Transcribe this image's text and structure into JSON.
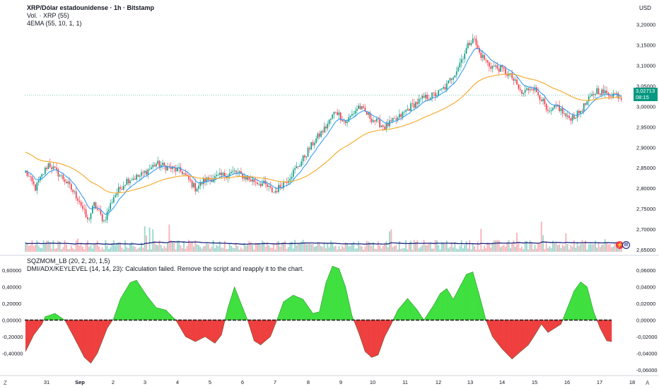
{
  "header": {
    "symbol_title": "XRP/Dólar estadounidense · 1h · Bitstamp",
    "volume_label": "Vol. · XRP (55)",
    "ema_label": "4EMA (55, 10, 1, 1)",
    "currency": "USD"
  },
  "price_badge": {
    "price": "3,02713",
    "countdown": "08:15"
  },
  "lower_pane": {
    "indicator_label": "SQZMOM_LB (20, 2, 20, 1,5)",
    "error_label": "DMI/ADX/KEYLEVEL (14, 14, 23): Calculation failed. Remove the script and reapply it to the chart."
  },
  "bottom_corner": {
    "left": "Z",
    "right": "A"
  },
  "colors": {
    "up": "#089981",
    "down": "#f23645",
    "ema_fast": "#2196f3",
    "ema_slow": "#f5a623",
    "vol_ma": "#1a237e",
    "mom_pos": "#3fe03f",
    "mom_neg": "#ef3f3f"
  },
  "chart_data": [
    {
      "type": "candlestick",
      "title": "XRP/Dólar estadounidense · 1h · Bitstamp",
      "y_axis_side": "right",
      "ylim": [
        2.645,
        3.225
      ],
      "y_ticks": [
        "3,20000",
        "3,15000",
        "3,10000",
        "3,05000",
        "3,00000",
        "2,95000",
        "2,90000",
        "2,85000",
        "2,80000",
        "2,75000",
        "2,70000",
        "2,65000"
      ],
      "x_ticks": [
        "31",
        "Sep",
        "2",
        "3",
        "4",
        "5",
        "6",
        "7",
        "8",
        "9",
        "10",
        "11",
        "12",
        "13",
        "14",
        "15",
        "16",
        "17",
        "18"
      ],
      "close_anchors": [
        [
          0,
          2.84
        ],
        [
          6,
          2.8
        ],
        [
          14,
          2.86
        ],
        [
          24,
          2.82
        ],
        [
          33,
          2.77
        ],
        [
          38,
          2.72
        ],
        [
          42,
          2.76
        ],
        [
          48,
          2.72
        ],
        [
          54,
          2.78
        ],
        [
          62,
          2.82
        ],
        [
          70,
          2.83
        ],
        [
          80,
          2.86
        ],
        [
          88,
          2.85
        ],
        [
          96,
          2.84
        ],
        [
          104,
          2.8
        ],
        [
          110,
          2.82
        ],
        [
          120,
          2.83
        ],
        [
          128,
          2.84
        ],
        [
          138,
          2.82
        ],
        [
          146,
          2.81
        ],
        [
          152,
          2.79
        ],
        [
          160,
          2.82
        ],
        [
          168,
          2.86
        ],
        [
          176,
          2.91
        ],
        [
          184,
          2.95
        ],
        [
          190,
          2.99
        ],
        [
          196,
          2.96
        ],
        [
          204,
          3.0
        ],
        [
          212,
          2.97
        ],
        [
          220,
          2.95
        ],
        [
          228,
          2.97
        ],
        [
          236,
          3.0
        ],
        [
          244,
          3.02
        ],
        [
          252,
          3.03
        ],
        [
          258,
          3.05
        ],
        [
          264,
          3.09
        ],
        [
          270,
          3.14
        ],
        [
          274,
          3.17
        ],
        [
          278,
          3.13
        ],
        [
          284,
          3.1
        ],
        [
          292,
          3.09
        ],
        [
          298,
          3.07
        ],
        [
          304,
          3.03
        ],
        [
          310,
          3.05
        ],
        [
          316,
          3.02
        ],
        [
          320,
          2.98
        ],
        [
          326,
          3.0
        ],
        [
          332,
          2.97
        ],
        [
          338,
          2.98
        ],
        [
          344,
          3.01
        ],
        [
          350,
          3.04
        ],
        [
          356,
          3.03
        ],
        [
          362,
          3.03
        ],
        [
          365,
          3.02
        ]
      ],
      "series": [
        {
          "name": "4EMA fast",
          "role": "ema_fast"
        },
        {
          "name": "4EMA slow",
          "role": "ema_slow"
        }
      ],
      "last_price": 3.02713
    },
    {
      "type": "bar",
      "title": "Vol. · XRP (55)",
      "overlay": "volume moving average line"
    },
    {
      "type": "area",
      "title": "SQZMOM_LB (20, 2, 20, 1,5)",
      "ylim": [
        -0.066,
        0.072
      ],
      "left_y_ticks": [
        "0,60000",
        "0,40000",
        "0,20000",
        "0,00000",
        "-0,20000",
        "-0,40000"
      ],
      "right_y_ticks": [
        "0,06000",
        "0,04000",
        "0,02000",
        "0,00000",
        "-0,02000",
        "-0,04000",
        "-0,06000"
      ],
      "momentum_anchors": [
        [
          0,
          -0.038
        ],
        [
          5,
          -0.018
        ],
        [
          10,
          -0.005
        ],
        [
          12,
          0.004
        ],
        [
          18,
          0.008
        ],
        [
          24,
          0.0
        ],
        [
          30,
          -0.022
        ],
        [
          36,
          -0.045
        ],
        [
          40,
          -0.052
        ],
        [
          44,
          -0.04
        ],
        [
          50,
          -0.01
        ],
        [
          54,
          0.002
        ],
        [
          58,
          0.025
        ],
        [
          64,
          0.045
        ],
        [
          68,
          0.048
        ],
        [
          74,
          0.03
        ],
        [
          80,
          0.015
        ],
        [
          86,
          0.012
        ],
        [
          92,
          0.0
        ],
        [
          98,
          -0.02
        ],
        [
          104,
          -0.026
        ],
        [
          110,
          -0.02
        ],
        [
          116,
          -0.028
        ],
        [
          120,
          -0.018
        ],
        [
          124,
          0.015
        ],
        [
          128,
          0.04
        ],
        [
          132,
          0.02
        ],
        [
          136,
          0.0
        ],
        [
          140,
          -0.025
        ],
        [
          144,
          -0.03
        ],
        [
          150,
          -0.02
        ],
        [
          154,
          0.0
        ],
        [
          158,
          0.022
        ],
        [
          164,
          0.03
        ],
        [
          170,
          0.025
        ],
        [
          176,
          0.008
        ],
        [
          180,
          0.01
        ],
        [
          184,
          0.045
        ],
        [
          188,
          0.065
        ],
        [
          192,
          0.062
        ],
        [
          196,
          0.04
        ],
        [
          200,
          0.005
        ],
        [
          204,
          -0.015
        ],
        [
          208,
          -0.038
        ],
        [
          212,
          -0.045
        ],
        [
          216,
          -0.042
        ],
        [
          220,
          -0.02
        ],
        [
          224,
          -0.005
        ],
        [
          228,
          0.012
        ],
        [
          234,
          0.026
        ],
        [
          240,
          0.012
        ],
        [
          244,
          0.0
        ],
        [
          250,
          0.018
        ],
        [
          254,
          0.032
        ],
        [
          258,
          0.038
        ],
        [
          262,
          0.025
        ],
        [
          266,
          0.04
        ],
        [
          270,
          0.055
        ],
        [
          274,
          0.058
        ],
        [
          278,
          0.03
        ],
        [
          282,
          0.0
        ],
        [
          286,
          -0.02
        ],
        [
          292,
          -0.035
        ],
        [
          298,
          -0.047
        ],
        [
          302,
          -0.04
        ],
        [
          308,
          -0.03
        ],
        [
          312,
          -0.018
        ],
        [
          316,
          -0.005
        ],
        [
          320,
          -0.015
        ],
        [
          324,
          -0.01
        ],
        [
          328,
          -0.005
        ],
        [
          332,
          0.015
        ],
        [
          336,
          0.035
        ],
        [
          340,
          0.046
        ],
        [
          344,
          0.04
        ],
        [
          348,
          0.01
        ],
        [
          352,
          -0.01
        ],
        [
          356,
          -0.025
        ],
        [
          359,
          -0.026
        ]
      ],
      "zero_line": 0
    }
  ]
}
